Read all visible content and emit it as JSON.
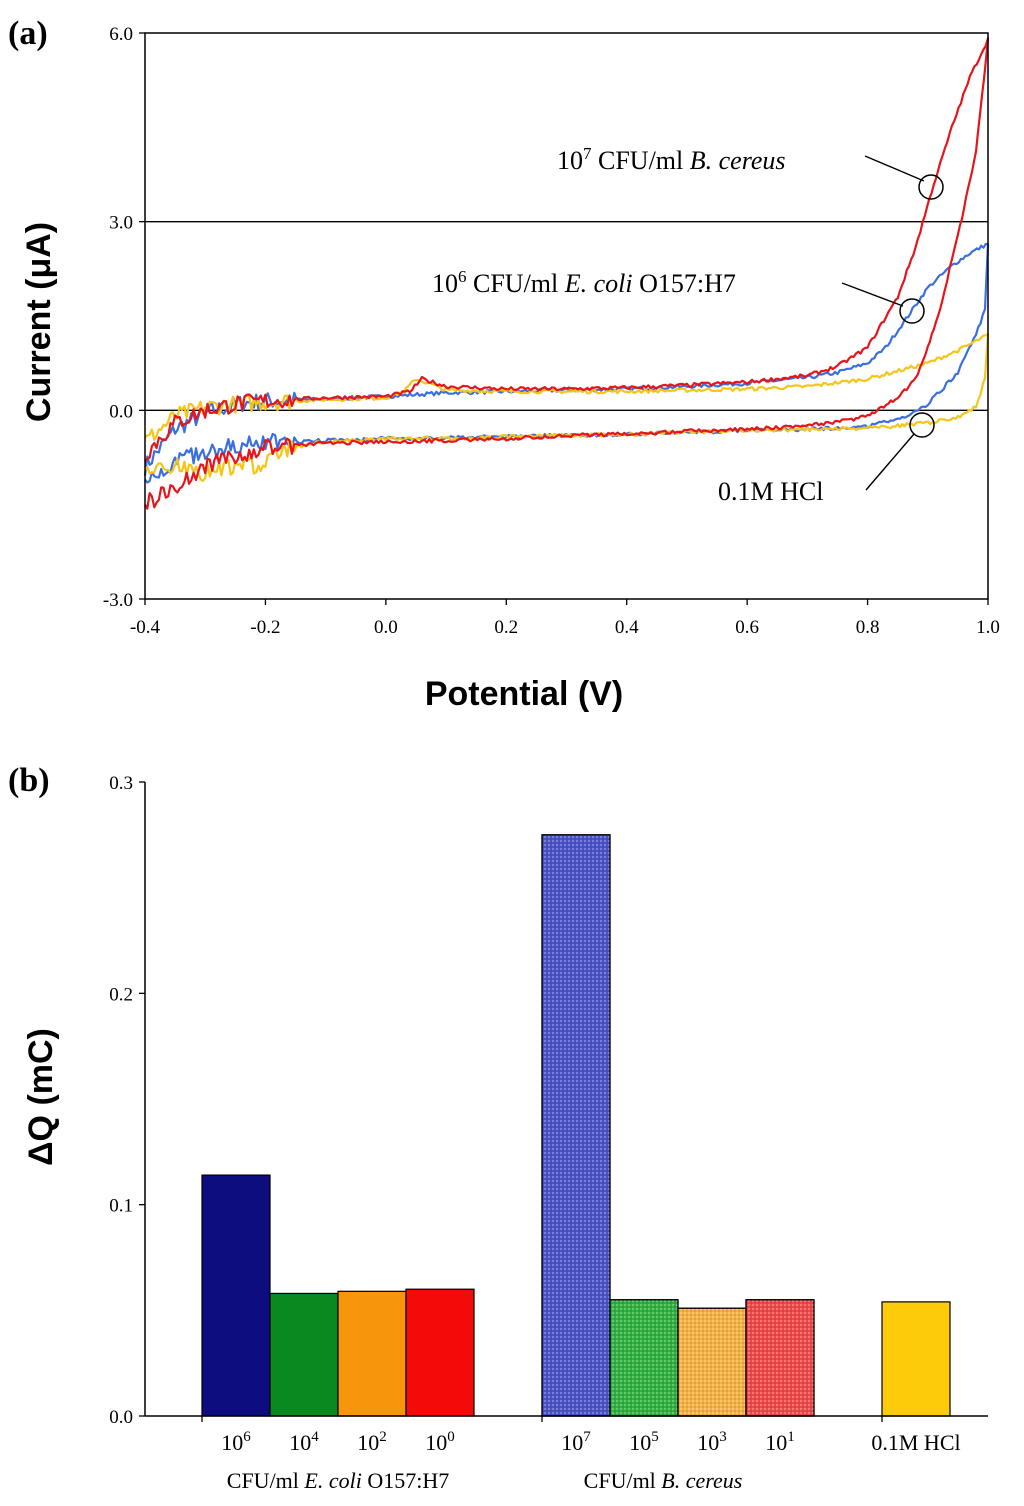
{
  "chart_data": [
    {
      "type": "line",
      "panel": "(a)",
      "xlabel": "Potential (V)",
      "ylabel": "Current (μA)",
      "xlim": [
        -0.4,
        1.0
      ],
      "ylim": [
        -3.0,
        6.0
      ],
      "xticks": [
        "-0.4",
        "-0.2",
        "0.0",
        "0.2",
        "0.4",
        "0.6",
        "0.8",
        "1.0"
      ],
      "yticks": [
        "6.0",
        "3.0",
        "0.0",
        "-3.0"
      ],
      "gridlines_y": [
        3.0,
        0.0
      ],
      "series": [
        {
          "name": "10^7 CFU/ml B. cereus",
          "color": "#e8141c",
          "x": [
            -0.4,
            -0.35,
            -0.3,
            -0.25,
            -0.2,
            -0.1,
            0.0,
            0.04,
            0.06,
            0.1,
            0.2,
            0.3,
            0.4,
            0.5,
            0.6,
            0.7,
            0.75,
            0.8,
            0.85,
            0.88,
            0.91,
            0.94,
            0.97,
            1.0,
            0.99,
            0.98,
            0.96,
            0.94,
            0.92,
            0.9,
            0.88,
            0.85,
            0.8,
            0.7,
            0.6,
            0.5,
            0.4,
            0.3,
            0.2,
            0.1,
            0.0,
            -0.1,
            -0.2,
            -0.25,
            -0.3,
            -0.35,
            -0.4
          ],
          "y": [
            -0.7,
            -0.2,
            0.0,
            0.1,
            0.15,
            0.2,
            0.22,
            0.3,
            0.5,
            0.38,
            0.34,
            0.34,
            0.36,
            0.4,
            0.45,
            0.55,
            0.7,
            1.0,
            1.8,
            2.6,
            3.6,
            4.5,
            5.3,
            5.9,
            5.0,
            4.1,
            3.2,
            2.4,
            1.6,
            1.0,
            0.5,
            0.2,
            -0.1,
            -0.25,
            -0.3,
            -0.33,
            -0.38,
            -0.4,
            -0.45,
            -0.48,
            -0.5,
            -0.52,
            -0.6,
            -0.75,
            -0.9,
            -1.2,
            -1.5
          ]
        },
        {
          "name": "10^6 CFU/ml E. coli O157:H7",
          "color": "#3b6fe0",
          "x": [
            -0.4,
            -0.35,
            -0.3,
            -0.25,
            -0.2,
            -0.1,
            0.0,
            0.1,
            0.2,
            0.3,
            0.4,
            0.5,
            0.6,
            0.7,
            0.75,
            0.8,
            0.83,
            0.86,
            0.9,
            0.94,
            0.97,
            1.0,
            0.995,
            0.98,
            0.95,
            0.9,
            0.85,
            0.8,
            0.7,
            0.6,
            0.5,
            0.4,
            0.3,
            0.2,
            0.1,
            0.0,
            -0.1,
            -0.2,
            -0.25,
            -0.3,
            -0.35,
            -0.4
          ],
          "y": [
            -0.9,
            -0.3,
            -0.05,
            0.1,
            0.15,
            0.18,
            0.22,
            0.28,
            0.3,
            0.32,
            0.34,
            0.38,
            0.43,
            0.52,
            0.6,
            0.75,
            1.0,
            1.4,
            1.95,
            2.3,
            2.5,
            2.65,
            1.6,
            1.2,
            0.6,
            0.1,
            -0.15,
            -0.25,
            -0.3,
            -0.32,
            -0.35,
            -0.38,
            -0.4,
            -0.42,
            -0.44,
            -0.45,
            -0.48,
            -0.52,
            -0.58,
            -0.65,
            -0.8,
            -1.1
          ]
        },
        {
          "name": "0.1M HCl",
          "color": "#f5c518",
          "x": [
            -0.4,
            -0.35,
            -0.3,
            -0.25,
            -0.2,
            -0.1,
            0.0,
            0.03,
            0.05,
            0.08,
            0.1,
            0.2,
            0.3,
            0.4,
            0.5,
            0.6,
            0.7,
            0.8,
            0.9,
            0.95,
            1.0,
            0.995,
            0.98,
            0.95,
            0.9,
            0.85,
            0.8,
            0.7,
            0.6,
            0.5,
            0.4,
            0.3,
            0.2,
            0.1,
            0.0,
            -0.1,
            -0.16,
            -0.2,
            -0.25,
            -0.3,
            -0.35,
            -0.4
          ],
          "y": [
            -0.5,
            -0.1,
            0.05,
            0.1,
            0.13,
            0.17,
            0.2,
            0.3,
            0.5,
            0.4,
            0.32,
            0.3,
            0.3,
            0.3,
            0.32,
            0.34,
            0.38,
            0.5,
            0.75,
            0.95,
            1.2,
            0.5,
            0.05,
            -0.1,
            -0.2,
            -0.25,
            -0.28,
            -0.3,
            -0.32,
            -0.35,
            -0.38,
            -0.4,
            -0.42,
            -0.45,
            -0.45,
            -0.5,
            -0.6,
            -0.85,
            -0.9,
            -1.0,
            -0.85,
            -0.95
          ]
        }
      ],
      "annotations": [
        {
          "base": "10",
          "exp": "7",
          "text": " CFU/ml ",
          "italic": "B. cereus",
          "tail": ""
        },
        {
          "base": "10",
          "exp": "6",
          "text": " CFU/ml ",
          "italic": "E. coli",
          "tail": " O157:H7"
        },
        {
          "base": "",
          "exp": "",
          "text": "0.1M HCl",
          "italic": "",
          "tail": ""
        }
      ]
    },
    {
      "type": "bar",
      "panel": "(b)",
      "ylabel": "ΔQ (mC)",
      "ylim": [
        0.0,
        0.3
      ],
      "yticks": [
        "0.3",
        "0.2",
        "0.1",
        "0.0"
      ],
      "bars": [
        {
          "base": "10",
          "exp": "6",
          "value": 0.114,
          "color": "#0d0d80",
          "group": 0,
          "pattern": false
        },
        {
          "base": "10",
          "exp": "4",
          "value": 0.058,
          "color": "#0a8a1e",
          "group": 0,
          "pattern": false
        },
        {
          "base": "10",
          "exp": "2",
          "value": 0.059,
          "color": "#f7960a",
          "group": 0,
          "pattern": false
        },
        {
          "base": "10",
          "exp": "0",
          "value": 0.06,
          "color": "#f50a0a",
          "group": 0,
          "pattern": false
        },
        {
          "base": "10",
          "exp": "7",
          "value": 0.275,
          "color": "#4a52c8",
          "group": 1,
          "pattern": true
        },
        {
          "base": "10",
          "exp": "5",
          "value": 0.055,
          "color": "#30b040",
          "group": 1,
          "pattern": true
        },
        {
          "base": "10",
          "exp": "3",
          "value": 0.051,
          "color": "#f4b040",
          "group": 1,
          "pattern": true
        },
        {
          "base": "10",
          "exp": "1",
          "value": 0.055,
          "color": "#f04848",
          "group": 1,
          "pattern": true
        },
        {
          "base": "0.1M HCl",
          "exp": "",
          "value": 0.054,
          "color": "#fccc0a",
          "group": 2,
          "pattern": false
        }
      ],
      "groups": [
        {
          "prefix": "CFU/ml ",
          "italic": "E. coli",
          "tail": " O157:H7"
        },
        {
          "prefix": "CFU/ml ",
          "italic": "B. cereus",
          "tail": ""
        }
      ]
    }
  ]
}
